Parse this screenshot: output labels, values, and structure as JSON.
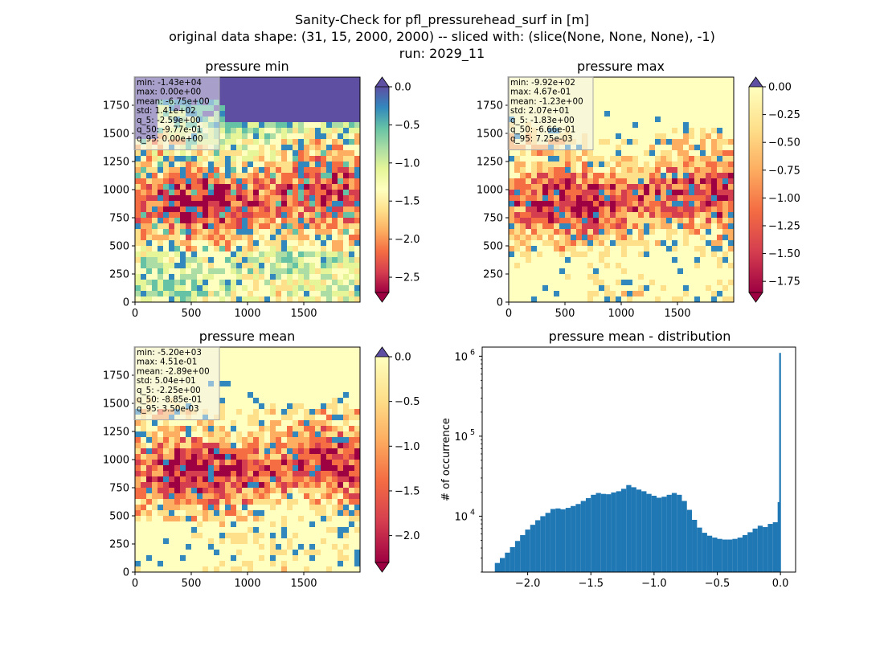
{
  "figure": {
    "title_lines": [
      "Sanity-Check for pfl_pressurehead_surf in [m]",
      "original data shape: (31, 15, 2000, 2000) -- sliced with: (slice(None, None, None), -1)",
      "run: 2029_11"
    ]
  },
  "chart_data": [
    {
      "type": "heatmap",
      "title": "pressure min",
      "colormap": "Spectral",
      "xlim": [
        0,
        2000
      ],
      "ylim": [
        0,
        2000
      ],
      "x_ticks": [
        "0",
        "500",
        "1000",
        "1500"
      ],
      "y_ticks": [
        "0",
        "250",
        "500",
        "750",
        "1000",
        "1250",
        "1500",
        "1750"
      ],
      "colorbar": {
        "range": [
          -2.7,
          0.0
        ],
        "ticks": [
          "-2.5",
          "-2.0",
          "-1.5",
          "-1.0",
          "-0.5",
          "0.0"
        ],
        "extend_top_color": "#5e4fa2",
        "extend_bottom_color": "#9e0142"
      },
      "stats": [
        "min: -1.43e+04",
        "max: 0.00e+00",
        "mean: -6.75e+00",
        "std: 1.41e+02",
        "q_5: -2.59e+00",
        "q_50: -9.77e-01",
        "q_95: 0.00e+00"
      ]
    },
    {
      "type": "heatmap",
      "title": "pressure max",
      "colormap": "Spectral",
      "xlim": [
        0,
        2000
      ],
      "ylim": [
        0,
        2000
      ],
      "x_ticks": [
        "0",
        "500",
        "1000",
        "1500"
      ],
      "y_ticks": [
        "0",
        "250",
        "500",
        "750",
        "1000",
        "1250",
        "1500",
        "1750"
      ],
      "colorbar": {
        "range": [
          -1.85,
          0.0
        ],
        "ticks": [
          "-1.75",
          "-1.50",
          "-1.25",
          "-1.00",
          "-0.75",
          "-0.50",
          "-0.25",
          "0.00"
        ],
        "extend_top_color": "#5e4fa2",
        "extend_bottom_color": "#9e0142"
      },
      "stats": [
        "min: -9.92e+02",
        "max: 4.67e-01",
        "mean: -1.23e+00",
        "std: 2.07e+01",
        "q_5: -1.83e+00",
        "q_50: -6.66e-01",
        "q_95: 7.25e-03"
      ]
    },
    {
      "type": "heatmap",
      "title": "pressure mean",
      "colormap": "Spectral",
      "xlim": [
        0,
        2000
      ],
      "ylim": [
        0,
        2000
      ],
      "x_ticks": [
        "0",
        "500",
        "1000",
        "1500"
      ],
      "y_ticks": [
        "0",
        "250",
        "500",
        "750",
        "1000",
        "1250",
        "1500",
        "1750"
      ],
      "colorbar": {
        "range": [
          -2.3,
          0.0
        ],
        "ticks": [
          "-2.0",
          "-1.5",
          "-1.0",
          "-0.5",
          "0.0"
        ],
        "extend_top_color": "#5e4fa2",
        "extend_bottom_color": "#9e0142"
      },
      "stats": [
        "min: -5.20e+03",
        "max: 4.51e-01",
        "mean: -2.89e+00",
        "std: 5.04e+01",
        "q_5: -2.25e+00",
        "q_50: -8.85e-01",
        "q_95: 3.50e-03"
      ]
    },
    {
      "type": "bar",
      "title": "pressure mean - distribution",
      "xlabel": "",
      "ylabel": "# of occurrence",
      "xlim": [
        -2.36,
        0.12
      ],
      "ylim": [
        2000,
        1300000
      ],
      "y_scale": "log",
      "x_ticks": [
        "−2.0",
        "−1.5",
        "−1.0",
        "−0.5",
        "0.0"
      ],
      "y_ticks": [
        {
          "base": "10",
          "exp": "4"
        },
        {
          "base": "10",
          "exp": "5"
        },
        {
          "base": "10",
          "exp": "6"
        }
      ],
      "bar_color": "#1f77b4",
      "bins": [
        {
          "x": -2.24,
          "y": 2600
        },
        {
          "x": -2.2,
          "y": 3000
        },
        {
          "x": -2.16,
          "y": 3500
        },
        {
          "x": -2.12,
          "y": 4100
        },
        {
          "x": -2.08,
          "y": 4900
        },
        {
          "x": -2.04,
          "y": 5800
        },
        {
          "x": -2.0,
          "y": 6800
        },
        {
          "x": -1.96,
          "y": 7800
        },
        {
          "x": -1.92,
          "y": 8900
        },
        {
          "x": -1.88,
          "y": 10000
        },
        {
          "x": -1.84,
          "y": 11000
        },
        {
          "x": -1.8,
          "y": 12300
        },
        {
          "x": -1.76,
          "y": 12500
        },
        {
          "x": -1.72,
          "y": 12200
        },
        {
          "x": -1.68,
          "y": 12700
        },
        {
          "x": -1.64,
          "y": 13400
        },
        {
          "x": -1.6,
          "y": 14200
        },
        {
          "x": -1.56,
          "y": 15500
        },
        {
          "x": -1.52,
          "y": 16800
        },
        {
          "x": -1.48,
          "y": 18500
        },
        {
          "x": -1.44,
          "y": 19500
        },
        {
          "x": -1.4,
          "y": 19000
        },
        {
          "x": -1.36,
          "y": 18800
        },
        {
          "x": -1.32,
          "y": 19800
        },
        {
          "x": -1.28,
          "y": 20500
        },
        {
          "x": -1.24,
          "y": 22000
        },
        {
          "x": -1.2,
          "y": 24500
        },
        {
          "x": -1.16,
          "y": 23000
        },
        {
          "x": -1.12,
          "y": 21500
        },
        {
          "x": -1.08,
          "y": 20500
        },
        {
          "x": -1.04,
          "y": 19000
        },
        {
          "x": -1.0,
          "y": 18000
        },
        {
          "x": -0.96,
          "y": 17000
        },
        {
          "x": -0.92,
          "y": 17500
        },
        {
          "x": -0.88,
          "y": 18500
        },
        {
          "x": -0.84,
          "y": 19500
        },
        {
          "x": -0.8,
          "y": 18500
        },
        {
          "x": -0.76,
          "y": 15500
        },
        {
          "x": -0.72,
          "y": 12000
        },
        {
          "x": -0.68,
          "y": 9000
        },
        {
          "x": -0.64,
          "y": 7200
        },
        {
          "x": -0.6,
          "y": 6200
        },
        {
          "x": -0.56,
          "y": 5700
        },
        {
          "x": -0.52,
          "y": 5400
        },
        {
          "x": -0.48,
          "y": 5200
        },
        {
          "x": -0.44,
          "y": 5100
        },
        {
          "x": -0.4,
          "y": 5100
        },
        {
          "x": -0.36,
          "y": 5200
        },
        {
          "x": -0.32,
          "y": 5400
        },
        {
          "x": -0.28,
          "y": 5800
        },
        {
          "x": -0.24,
          "y": 6300
        },
        {
          "x": -0.2,
          "y": 7000
        },
        {
          "x": -0.16,
          "y": 7600
        },
        {
          "x": -0.12,
          "y": 7300
        },
        {
          "x": -0.08,
          "y": 8000
        },
        {
          "x": -0.04,
          "y": 8400
        },
        {
          "x": -0.015,
          "y": 15000
        },
        {
          "x": -0.003,
          "y": 1100000
        }
      ]
    }
  ]
}
